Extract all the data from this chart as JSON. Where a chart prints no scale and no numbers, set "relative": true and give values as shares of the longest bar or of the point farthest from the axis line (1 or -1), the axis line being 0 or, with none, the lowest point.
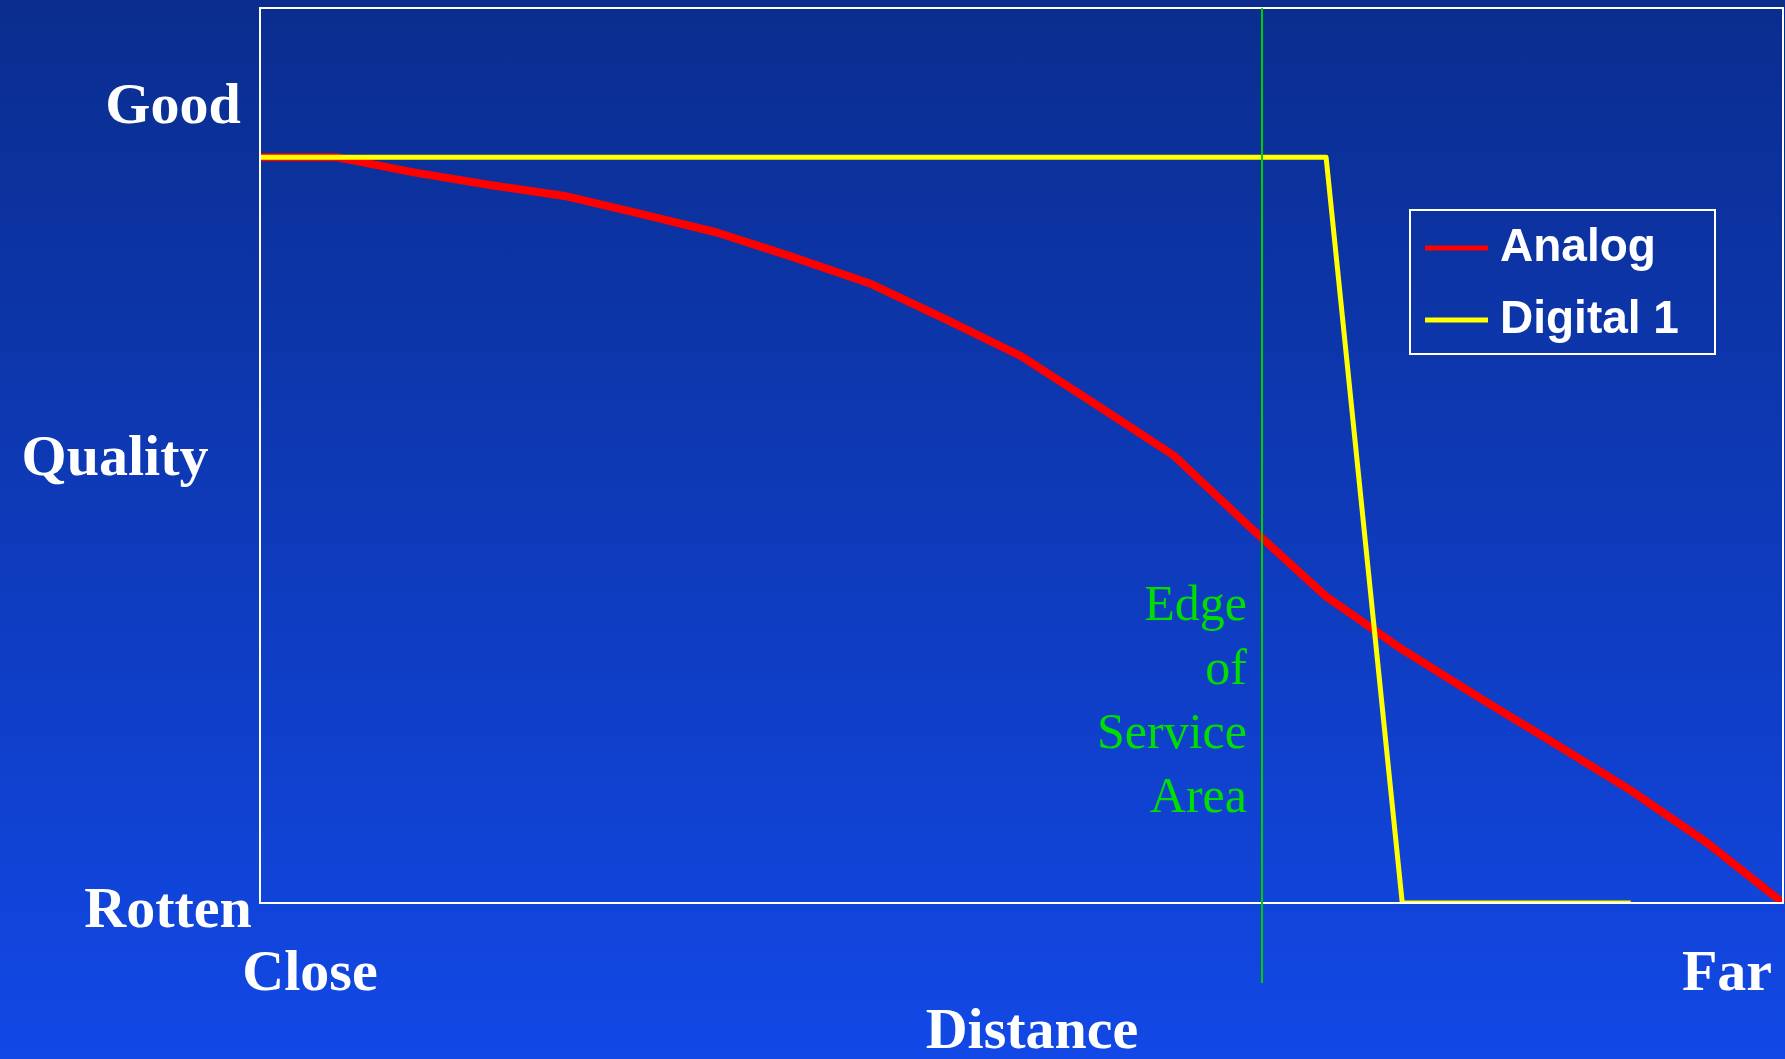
{
  "chart_data": {
    "type": "line",
    "relative": true,
    "ylabel": "Quality",
    "xlabel": "Distance",
    "categories": [
      null,
      null,
      null,
      null,
      null,
      null,
      null,
      null,
      null,
      null,
      null,
      null,
      null,
      null,
      null,
      null,
      null,
      null,
      null,
      null,
      null
    ],
    "series": [
      {
        "name": "Analog",
        "color": "#ff0000",
        "values": [
          1,
          1,
          0.98,
          0.963,
          0.948,
          0.924,
          0.899,
          0.866,
          0.831,
          0.783,
          0.733,
          0.667,
          0.6,
          0.504,
          0.411,
          0.34,
          0.276,
          0.214,
          0.151,
          0.081,
          0
        ]
      },
      {
        "name": "Digital 1",
        "color": "#ffff00",
        "values": [
          1,
          1,
          1,
          1,
          1,
          1,
          1,
          1,
          1,
          1,
          1,
          1,
          1,
          1,
          1,
          0,
          0,
          0,
          0,
          null,
          null
        ]
      }
    ],
    "annotations": [
      "Good",
      "Rotten",
      "Close",
      "Far",
      "Edge of Service Area"
    ],
    "legend": "top right",
    "marker": "none",
    "line_style": "solid"
  }
}
